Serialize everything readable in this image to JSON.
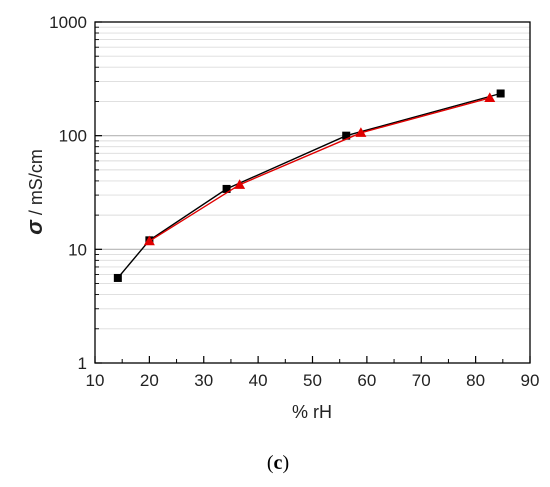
{
  "chart_data": {
    "type": "scatter",
    "xlabel": "% rH",
    "ylabel_symbol": "σ",
    "ylabel_units": " / mS/cm",
    "caption_open": "(",
    "caption_letter": "c",
    "caption_close": ")",
    "xlim": [
      10,
      90
    ],
    "ylim": [
      1,
      1000
    ],
    "yscale": "log",
    "x_ticks": [
      "10",
      "20",
      "30",
      "40",
      "50",
      "60",
      "70",
      "80",
      "90"
    ],
    "y_ticks": [
      "1",
      "10",
      "100",
      "1000"
    ],
    "grid": "horizontal",
    "series": [
      {
        "marker": "square",
        "color": "#000000",
        "x": [
          14.2,
          20.0,
          34.2,
          56.2,
          84.6
        ],
        "y": [
          5.6,
          12.0,
          34.0,
          100.0,
          235.0
        ]
      },
      {
        "marker": "triangle",
        "color": "#e00000",
        "x": [
          20.0,
          36.6,
          58.9,
          82.6
        ],
        "y": [
          11.8,
          37.0,
          106.0,
          215.0
        ]
      }
    ]
  }
}
